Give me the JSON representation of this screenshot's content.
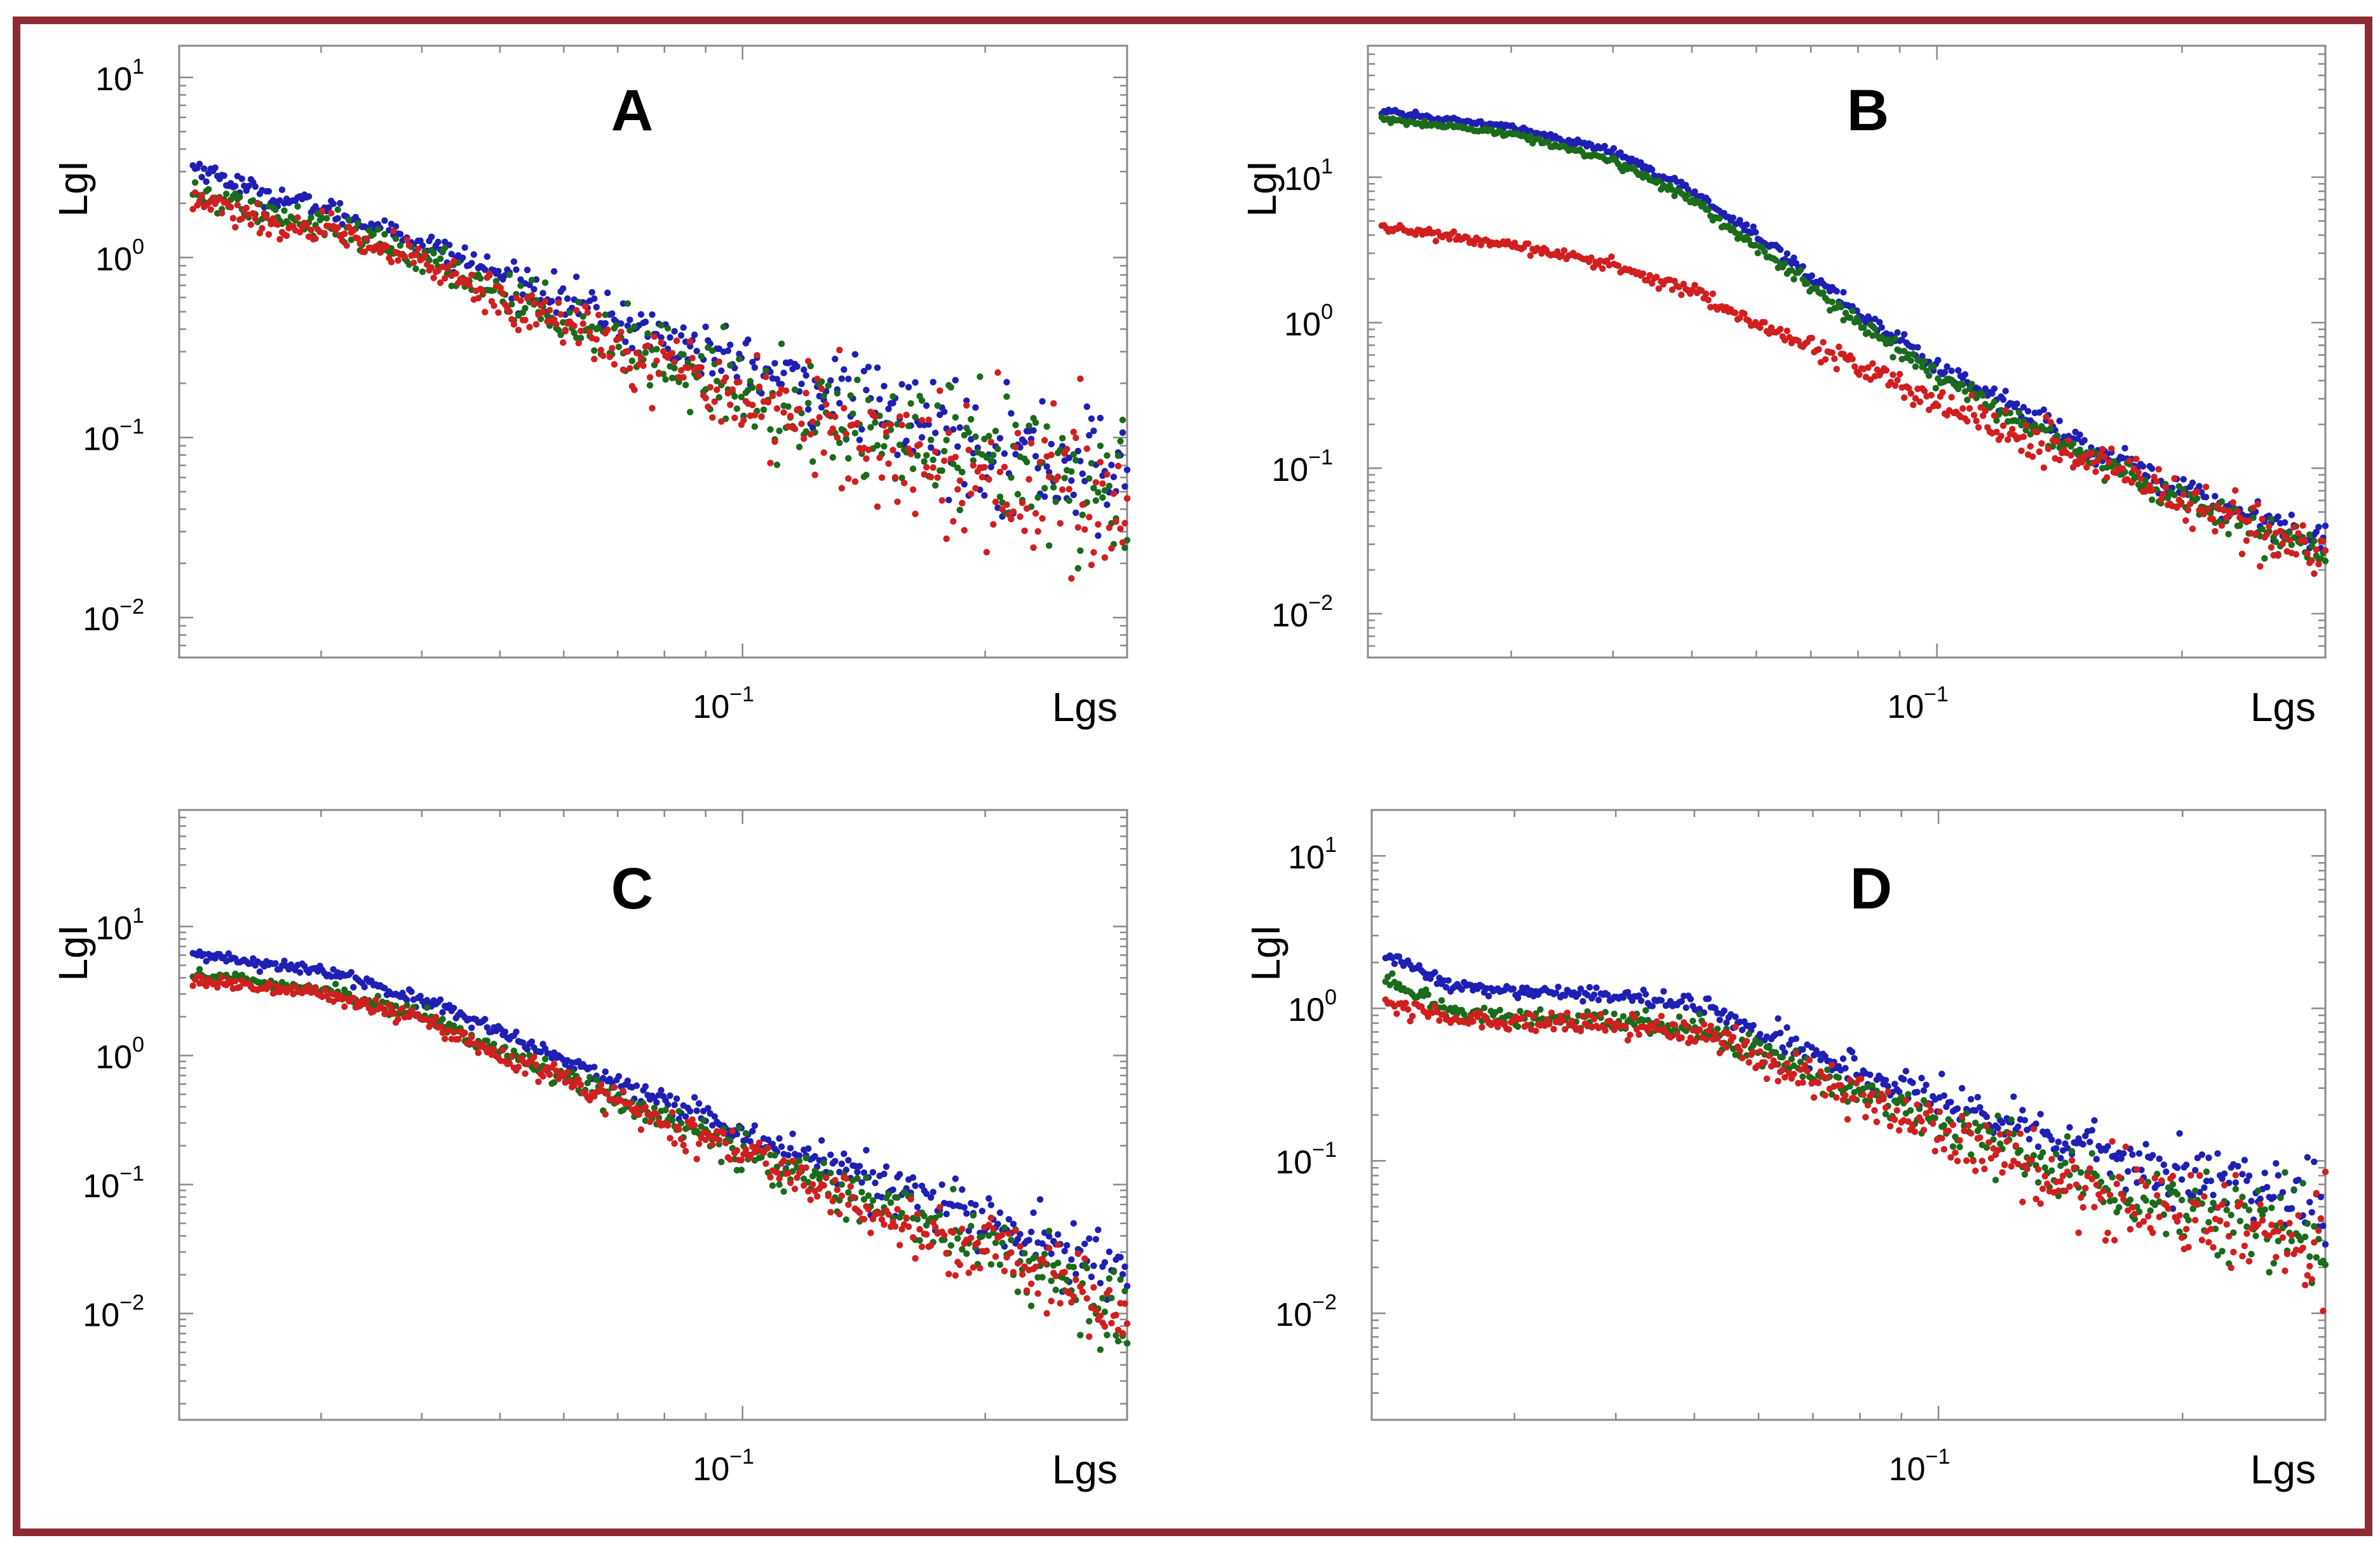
{
  "chart_data": [
    {
      "type": "scatter",
      "title": "A",
      "xlabel": "Lgs",
      "ylabel": "LgI",
      "xscale": "log",
      "yscale": "log",
      "xlim": [
        0.02,
        0.3
      ],
      "ylim": [
        0.006,
        15
      ],
      "yticks": [
        {
          "base": "10",
          "exp": "1"
        },
        {
          "base": "10",
          "exp": "0"
        },
        {
          "base": "10",
          "exp": "-1"
        },
        {
          "base": "10",
          "exp": "-2"
        }
      ],
      "xticks": [
        {
          "base": "10",
          "exp": "-1"
        }
      ],
      "series": [
        {
          "name": "blue",
          "color": "#1f1fb4",
          "points": [
            [
              0.021,
              3.2
            ],
            [
              0.025,
              2.3
            ],
            [
              0.03,
              1.9
            ],
            [
              0.04,
              1.2
            ],
            [
              0.05,
              0.8
            ],
            [
              0.07,
              0.45
            ],
            [
              0.1,
              0.25
            ],
            [
              0.15,
              0.14
            ],
            [
              0.2,
              0.09
            ],
            [
              0.3,
              0.06
            ]
          ],
          "noise": 0.18
        },
        {
          "name": "green",
          "color": "#1a6b1a",
          "points": [
            [
              0.021,
              2.3
            ],
            [
              0.025,
              1.8
            ],
            [
              0.03,
              1.5
            ],
            [
              0.04,
              1.0
            ],
            [
              0.05,
              0.65
            ],
            [
              0.07,
              0.35
            ],
            [
              0.1,
              0.18
            ],
            [
              0.15,
              0.1
            ],
            [
              0.2,
              0.07
            ],
            [
              0.3,
              0.045
            ]
          ],
          "noise": 0.22
        },
        {
          "name": "red",
          "color": "#d11f1f",
          "points": [
            [
              0.021,
              2.2
            ],
            [
              0.025,
              1.6
            ],
            [
              0.03,
              1.4
            ],
            [
              0.04,
              0.95
            ],
            [
              0.05,
              0.6
            ],
            [
              0.07,
              0.33
            ],
            [
              0.1,
              0.17
            ],
            [
              0.15,
              0.09
            ],
            [
              0.2,
              0.06
            ],
            [
              0.3,
              0.04
            ]
          ],
          "noise": 0.24
        }
      ]
    },
    {
      "type": "scatter",
      "title": "B",
      "xlabel": "Lgs",
      "ylabel": "LgI",
      "xscale": "log",
      "yscale": "log",
      "xlim": [
        0.02,
        0.3
      ],
      "ylim": [
        0.005,
        80
      ],
      "yticks": [
        {
          "base": "10",
          "exp": "1"
        },
        {
          "base": "10",
          "exp": "0"
        },
        {
          "base": "10",
          "exp": "-1"
        },
        {
          "base": "10",
          "exp": "-2"
        }
      ],
      "xticks": [
        {
          "base": "10",
          "exp": "-1"
        }
      ],
      "series": [
        {
          "name": "blue",
          "color": "#1f1fb4",
          "points": [
            [
              0.021,
              28
            ],
            [
              0.03,
              22
            ],
            [
              0.04,
              15
            ],
            [
              0.05,
              8
            ],
            [
              0.06,
              4
            ],
            [
              0.08,
              1.2
            ],
            [
              0.1,
              0.5
            ],
            [
              0.15,
              0.15
            ],
            [
              0.2,
              0.07
            ],
            [
              0.3,
              0.03
            ]
          ],
          "noise": 0.06
        },
        {
          "name": "green",
          "color": "#1a6b1a",
          "points": [
            [
              0.021,
              25
            ],
            [
              0.03,
              20
            ],
            [
              0.04,
              13
            ],
            [
              0.05,
              7
            ],
            [
              0.06,
              3.3
            ],
            [
              0.08,
              1.0
            ],
            [
              0.1,
              0.42
            ],
            [
              0.15,
              0.13
            ],
            [
              0.2,
              0.06
            ],
            [
              0.3,
              0.025
            ]
          ],
          "noise": 0.06
        },
        {
          "name": "red",
          "color": "#d11f1f",
          "points": [
            [
              0.021,
              4.5
            ],
            [
              0.03,
              3.4
            ],
            [
              0.04,
              2.5
            ],
            [
              0.05,
              1.6
            ],
            [
              0.06,
              1.0
            ],
            [
              0.08,
              0.5
            ],
            [
              0.1,
              0.28
            ],
            [
              0.15,
              0.12
            ],
            [
              0.2,
              0.06
            ],
            [
              0.3,
              0.025
            ]
          ],
          "noise": 0.1
        }
      ]
    },
    {
      "type": "scatter",
      "title": "C",
      "xlabel": "Lgs",
      "ylabel": "LgI",
      "xscale": "log",
      "yscale": "log",
      "xlim": [
        0.02,
        0.3
      ],
      "ylim": [
        0.0015,
        80
      ],
      "yticks": [
        {
          "base": "10",
          "exp": "1"
        },
        {
          "base": "10",
          "exp": "0"
        },
        {
          "base": "10",
          "exp": "-1"
        },
        {
          "base": "10",
          "exp": "-2"
        }
      ],
      "xticks": [
        {
          "base": "10",
          "exp": "-1"
        }
      ],
      "series": [
        {
          "name": "blue",
          "color": "#1f1fb4",
          "points": [
            [
              0.021,
              6.0
            ],
            [
              0.03,
              4.6
            ],
            [
              0.04,
              2.7
            ],
            [
              0.05,
              1.5
            ],
            [
              0.07,
              0.6
            ],
            [
              0.1,
              0.25
            ],
            [
              0.15,
              0.1
            ],
            [
              0.2,
              0.05
            ],
            [
              0.3,
              0.02
            ]
          ],
          "noise": 0.12
        },
        {
          "name": "green",
          "color": "#1a6b1a",
          "points": [
            [
              0.021,
              4.2
            ],
            [
              0.03,
              3.3
            ],
            [
              0.04,
              2.0
            ],
            [
              0.05,
              1.1
            ],
            [
              0.07,
              0.45
            ],
            [
              0.1,
              0.18
            ],
            [
              0.15,
              0.07
            ],
            [
              0.2,
              0.035
            ],
            [
              0.3,
              0.012
            ]
          ],
          "noise": 0.15
        },
        {
          "name": "red",
          "color": "#d11f1f",
          "points": [
            [
              0.021,
              3.8
            ],
            [
              0.03,
              3.0
            ],
            [
              0.04,
              1.9
            ],
            [
              0.05,
              1.0
            ],
            [
              0.07,
              0.42
            ],
            [
              0.1,
              0.17
            ],
            [
              0.15,
              0.06
            ],
            [
              0.2,
              0.03
            ],
            [
              0.3,
              0.01
            ]
          ],
          "noise": 0.16
        }
      ]
    },
    {
      "type": "scatter",
      "title": "D",
      "xlabel": "Lgs",
      "ylabel": "LgI",
      "xscale": "log",
      "yscale": "log",
      "xlim": [
        0.02,
        0.3
      ],
      "ylim": [
        0.002,
        20
      ],
      "yticks": [
        {
          "base": "10",
          "exp": "1"
        },
        {
          "base": "10",
          "exp": "0"
        },
        {
          "base": "10",
          "exp": "-1"
        },
        {
          "base": "10",
          "exp": "-2"
        }
      ],
      "xticks": [
        {
          "base": "10",
          "exp": "-1"
        }
      ],
      "series": [
        {
          "name": "blue",
          "color": "#1f1fb4",
          "points": [
            [
              0.021,
              2.2
            ],
            [
              0.025,
              1.4
            ],
            [
              0.03,
              1.3
            ],
            [
              0.04,
              1.2
            ],
            [
              0.05,
              1.05
            ],
            [
              0.07,
              0.5
            ],
            [
              0.1,
              0.25
            ],
            [
              0.15,
              0.12
            ],
            [
              0.2,
              0.08
            ],
            [
              0.3,
              0.05
            ]
          ],
          "noise": 0.12
        },
        {
          "name": "green",
          "color": "#1a6b1a",
          "points": [
            [
              0.021,
              1.5
            ],
            [
              0.025,
              0.95
            ],
            [
              0.03,
              0.85
            ],
            [
              0.04,
              0.85
            ],
            [
              0.05,
              0.75
            ],
            [
              0.07,
              0.38
            ],
            [
              0.1,
              0.18
            ],
            [
              0.15,
              0.08
            ],
            [
              0.2,
              0.05
            ],
            [
              0.3,
              0.03
            ]
          ],
          "noise": 0.16
        },
        {
          "name": "red",
          "color": "#d11f1f",
          "points": [
            [
              0.021,
              1.1
            ],
            [
              0.025,
              0.85
            ],
            [
              0.03,
              0.8
            ],
            [
              0.04,
              0.8
            ],
            [
              0.05,
              0.7
            ],
            [
              0.07,
              0.35
            ],
            [
              0.1,
              0.16
            ],
            [
              0.15,
              0.07
            ],
            [
              0.2,
              0.045
            ],
            [
              0.3,
              0.025
            ]
          ],
          "noise": 0.18
        }
      ]
    }
  ]
}
